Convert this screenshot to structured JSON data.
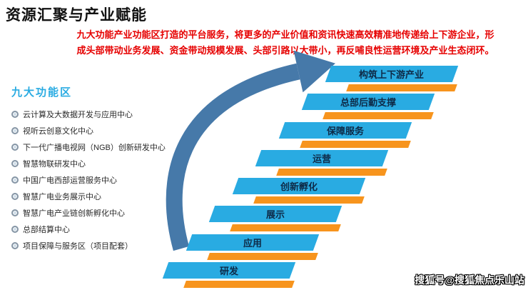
{
  "page": {
    "title": "资源汇聚与产业赋能",
    "description_lines": [
      "九大功能产业功能区打造的平台服务，将更多的产业价值和资讯快速高效精准地传递给上下游企业，形",
      "成头部带动业务发展、资金带动规模发展、头部引路以大带小，再反哺良性运营环境及产业生态闭环。"
    ]
  },
  "functional_zones": {
    "heading": "九大功能区",
    "items": [
      "云计算及大数据开发与应用中心",
      "视听云创意文化中心",
      "下一代广播电视网（NGB）创新研发中心",
      "智慧物联研发中心",
      "中国广电西部运营服务中心",
      "智慧广电业务展示中心",
      "智慧广电产业链创新孵化中心",
      "总部结算中心",
      "项目保障与服务区（项目配套）"
    ]
  },
  "staircase": {
    "steps_bottom_to_top": [
      "研发",
      "应用",
      "展示",
      "创新孵化",
      "运营",
      "保障服务",
      "总部后勤支撑",
      "构筑上下游产业"
    ]
  },
  "watermark": "搜狐号@搜狐焦点乐山站",
  "colors": {
    "step_blue": "#29ABE2",
    "step_orange": "#F7941D",
    "arrow_blue": "#4679A9",
    "heading_blue": "#29ABE2",
    "description_red": "#E60000"
  }
}
